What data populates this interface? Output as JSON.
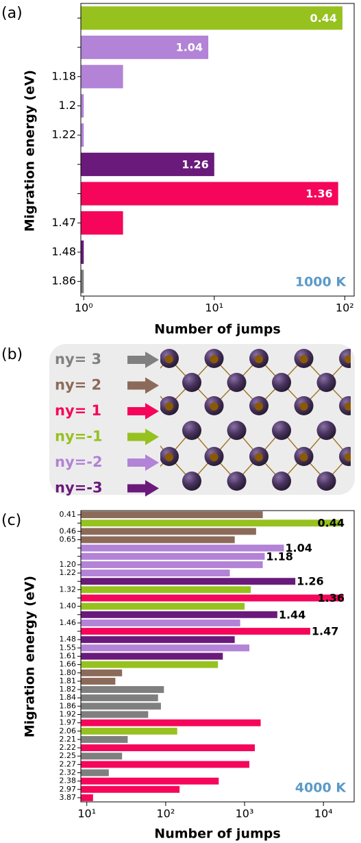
{
  "chart_data": [
    {
      "type": "bar",
      "orientation": "horizontal",
      "label": "(a)",
      "xscale": "log",
      "categories": [
        "0.44",
        "1.04",
        "1.18",
        "1.2",
        "1.22",
        "1.26",
        "1.36",
        "1.47",
        "1.48",
        "1.86"
      ],
      "category_label_inside": [
        true,
        true,
        false,
        false,
        false,
        true,
        true,
        false,
        false,
        false
      ],
      "inside_label_color": "#ffffff",
      "values": [
        96,
        9,
        2,
        1,
        1,
        10,
        89,
        2,
        1,
        1
      ],
      "colors": [
        "#96c11f",
        "#b283d6",
        "#b283d6",
        "#b283d6",
        "#b283d6",
        "#6a1a7a",
        "#f5065a",
        "#f5065a",
        "#6a1a7a",
        "#7f7f7f"
      ],
      "xlim": [
        0.95,
        118
      ],
      "xticks": [
        {
          "value": 1,
          "label": "10⁰"
        },
        {
          "value": 10,
          "label": "10¹"
        },
        {
          "value": 100,
          "label": "10²"
        }
      ],
      "xlabel": "Number of jumps",
      "ylabel": "Migration energy (eV)",
      "annotation": "1000 K",
      "annotation_color": "#5b9ac8"
    },
    {
      "type": "bar",
      "orientation": "horizontal",
      "label": "(c)",
      "xscale": "log",
      "categories": [
        "0.41",
        "0.44",
        "0.46",
        "0.65",
        "1.04",
        "1.18",
        "1.20",
        "1.22",
        "1.26",
        "1.32",
        "1.36",
        "1.40",
        "1.44",
        "1.46",
        "1.47",
        "1.48",
        "1.55",
        "1.61",
        "1.66",
        "1.80",
        "1.81",
        "1.82",
        "1.84",
        "1.86",
        "1.92",
        "1.97",
        "2.06",
        "2.21",
        "2.22",
        "2.25",
        "2.27",
        "2.32",
        "2.38",
        "2.97",
        "3.87"
      ],
      "category_label_inside": [
        false,
        true,
        false,
        false,
        true,
        true,
        false,
        false,
        true,
        false,
        true,
        false,
        true,
        false,
        true,
        false,
        false,
        false,
        false,
        false,
        false,
        false,
        false,
        false,
        false,
        false,
        false,
        false,
        false,
        false,
        false,
        false,
        false,
        false,
        false
      ],
      "inside_label_color": "#000000",
      "values": [
        1700,
        16600,
        1400,
        750,
        3150,
        1800,
        1700,
        650,
        4400,
        1200,
        18000,
        1000,
        2600,
        880,
        6800,
        750,
        1150,
        530,
        460,
        28,
        23,
        95,
        80,
        87,
        60,
        1600,
        140,
        33,
        1350,
        28,
        1150,
        19,
        470,
        150,
        12
      ],
      "colors": [
        "#8c6a5a",
        "#96c11f",
        "#8c6a5a",
        "#8c6a5a",
        "#b283d6",
        "#b283d6",
        "#b283d6",
        "#b283d6",
        "#6a1a7a",
        "#96c11f",
        "#f5065a",
        "#96c11f",
        "#6a1a7a",
        "#b283d6",
        "#f5065a",
        "#6a1a7a",
        "#b283d6",
        "#6a1a7a",
        "#96c11f",
        "#8c6a5a",
        "#8c6a5a",
        "#7f7f7f",
        "#7f7f7f",
        "#7f7f7f",
        "#7f7f7f",
        "#f5065a",
        "#96c11f",
        "#7f7f7f",
        "#f5065a",
        "#7f7f7f",
        "#f5065a",
        "#7f7f7f",
        "#f5065a",
        "#f5065a",
        "#f5065a"
      ],
      "xlim": [
        8.4,
        24500
      ],
      "xticks": [
        {
          "value": 10,
          "label": "10¹"
        },
        {
          "value": 100,
          "label": "10²"
        },
        {
          "value": 1000,
          "label": "10³"
        },
        {
          "value": 10000,
          "label": "10⁴"
        }
      ],
      "xlabel": "Number of jumps",
      "ylabel": "Migration energy (eV)",
      "annotation": "4000 K",
      "annotation_color": "#5b9ac8"
    }
  ],
  "diagram": {
    "label": "(b)",
    "arrows": [
      {
        "text": "ny= 3",
        "color": "#808080"
      },
      {
        "text": "ny= 2",
        "color": "#8c6a5a"
      },
      {
        "text": "ny= 1",
        "color": "#f5065a"
      },
      {
        "text": "ny=-1",
        "color": "#96c11f"
      },
      {
        "text": "ny=-2",
        "color": "#b283d6"
      },
      {
        "text": "ny=-3",
        "color": "#6a1a7a"
      }
    ]
  }
}
